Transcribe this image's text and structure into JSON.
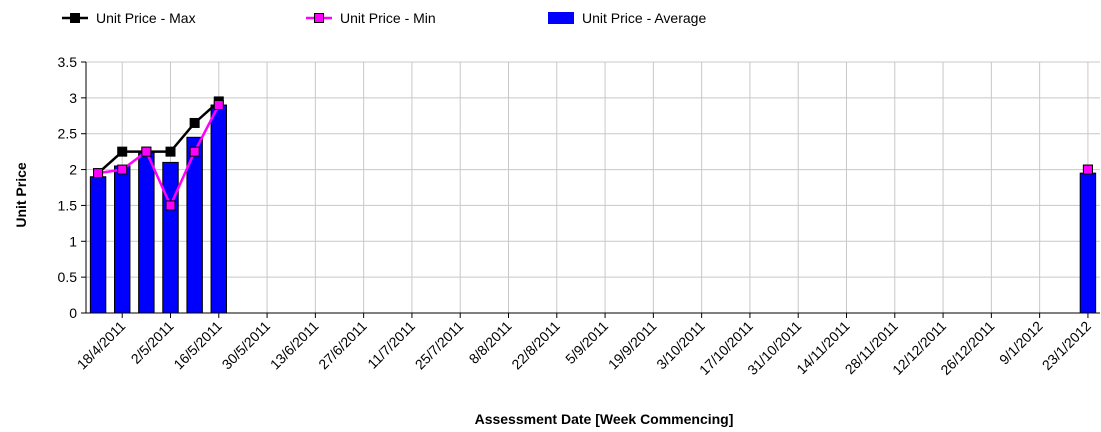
{
  "chart_data": {
    "type": "bar-line",
    "y_label": "Unit Price",
    "x_label": "Assessment Date [Week Commencing]",
    "categories": [
      null,
      "18/4/2011",
      null,
      "2/5/2011",
      null,
      "16/5/2011",
      null,
      "30/5/2011",
      null,
      "13/6/2011",
      null,
      "27/6/2011",
      null,
      "11/7/2011",
      null,
      "25/7/2011",
      null,
      "8/8/2011",
      null,
      "22/8/2011",
      null,
      "5/9/2011",
      null,
      "19/9/2011",
      null,
      "3/10/2011",
      null,
      "17/10/2011",
      null,
      "31/10/2011",
      null,
      "14/11/2011",
      null,
      "28/11/2011",
      null,
      "12/12/2011",
      null,
      "26/12/2011",
      null,
      "9/1/2012",
      null,
      "23/1/2012"
    ],
    "series": [
      {
        "name": "Unit Price - Max",
        "kind": "line",
        "color": "#000000",
        "marker_color": "#000000",
        "values": [
          1.95,
          2.25,
          2.25,
          2.25,
          2.65,
          2.95,
          null,
          null,
          null,
          null,
          null,
          null,
          null,
          null,
          null,
          null,
          null,
          null,
          null,
          null,
          null,
          null,
          null,
          null,
          null,
          null,
          null,
          null,
          null,
          null,
          null,
          null,
          null,
          null,
          null,
          null,
          null,
          null,
          null,
          null,
          null,
          2.0
        ]
      },
      {
        "name": "Unit Price - Min",
        "kind": "line",
        "color": "#ff00ff",
        "marker_color": "#ff00ff",
        "values": [
          1.95,
          2.0,
          2.25,
          1.5,
          2.25,
          2.9,
          null,
          null,
          null,
          null,
          null,
          null,
          null,
          null,
          null,
          null,
          null,
          null,
          null,
          null,
          null,
          null,
          null,
          null,
          null,
          null,
          null,
          null,
          null,
          null,
          null,
          null,
          null,
          null,
          null,
          null,
          null,
          null,
          null,
          null,
          null,
          2.0
        ]
      },
      {
        "name": "Unit Price - Average",
        "kind": "bar",
        "color": "#0000ff",
        "values": [
          1.9,
          2.05,
          2.25,
          2.1,
          2.45,
          2.9,
          null,
          null,
          null,
          null,
          null,
          null,
          null,
          null,
          null,
          null,
          null,
          null,
          null,
          null,
          null,
          null,
          null,
          null,
          null,
          null,
          null,
          null,
          null,
          null,
          null,
          null,
          null,
          null,
          null,
          null,
          null,
          null,
          null,
          null,
          null,
          1.95
        ]
      }
    ],
    "ylim": [
      0,
      3.5
    ],
    "yticks": [
      0,
      0.5,
      1,
      1.5,
      2,
      2.5,
      3,
      3.5
    ],
    "grid": true
  }
}
